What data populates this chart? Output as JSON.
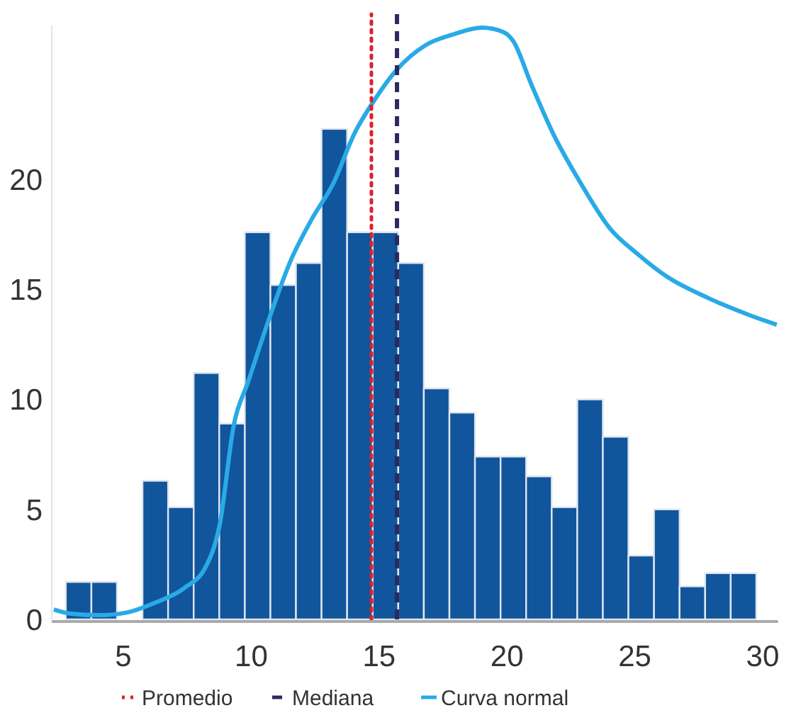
{
  "chart_data": {
    "type": "histogram",
    "bins": [
      2.75,
      3.75,
      4.75,
      5.75,
      6.75,
      7.75,
      8.75,
      9.75,
      10.75,
      11.75,
      12.75,
      13.75,
      14.75,
      15.75,
      16.75,
      17.75,
      18.75,
      19.75,
      20.75,
      21.75,
      22.75,
      23.75,
      24.75,
      25.75,
      26.75,
      27.75,
      28.75,
      29.75
    ],
    "values": [
      1.7,
      1.7,
      0,
      6.3,
      5.1,
      11.2,
      8.9,
      17.6,
      15.2,
      16.2,
      22.3,
      17.6,
      17.6,
      16.2,
      10.5,
      9.4,
      7.4,
      7.4,
      6.5,
      5.1,
      10,
      8.3,
      2.9,
      5,
      1.5,
      2.1,
      2.1
    ],
    "color": "#11559c",
    "series": [
      {
        "type": "line",
        "name": "Curva normal",
        "color": "#29aae6",
        "x": [
          2.28,
          2.95,
          4.06,
          5.17,
          6.27,
          7.38,
          8.22,
          8.77,
          9.32,
          9.88,
          10.71,
          11.54,
          12.37,
          13.2,
          14.04,
          14.87,
          15.7,
          16.81,
          17.92,
          19.02,
          19.86,
          20.24,
          20.96,
          21.8,
          22.9,
          24.01,
          25.12,
          26.23,
          27.89,
          29.56,
          30.55
        ],
        "values": [
          0.45,
          0.26,
          0.19,
          0.32,
          0.77,
          1.42,
          2.39,
          4.32,
          8.84,
          10.8,
          13.7,
          16.3,
          18.2,
          19.8,
          22.1,
          23.7,
          25,
          26.1,
          26.6,
          26.9,
          26.7,
          26.3,
          24.3,
          22.1,
          19.8,
          17.8,
          16.6,
          15.6,
          14.6,
          13.8,
          13.4
        ]
      }
    ],
    "ref_lines": [
      {
        "axis": "x",
        "value": 14.7,
        "label": "Promedio",
        "color": "#e0202a",
        "line_style": "dotted"
      },
      {
        "axis": "x",
        "value": 15.7,
        "label": "Mediana",
        "color": "#2a2a5e",
        "line_style": "dashed"
      }
    ],
    "xlim": [
      2.2,
      30.6
    ],
    "xticks": [
      5,
      10,
      15,
      20,
      25,
      30
    ],
    "ylim": [
      0,
      27
    ],
    "yticks": [
      0,
      5,
      10,
      15,
      20
    ],
    "grid": false,
    "legend": "bottom"
  }
}
